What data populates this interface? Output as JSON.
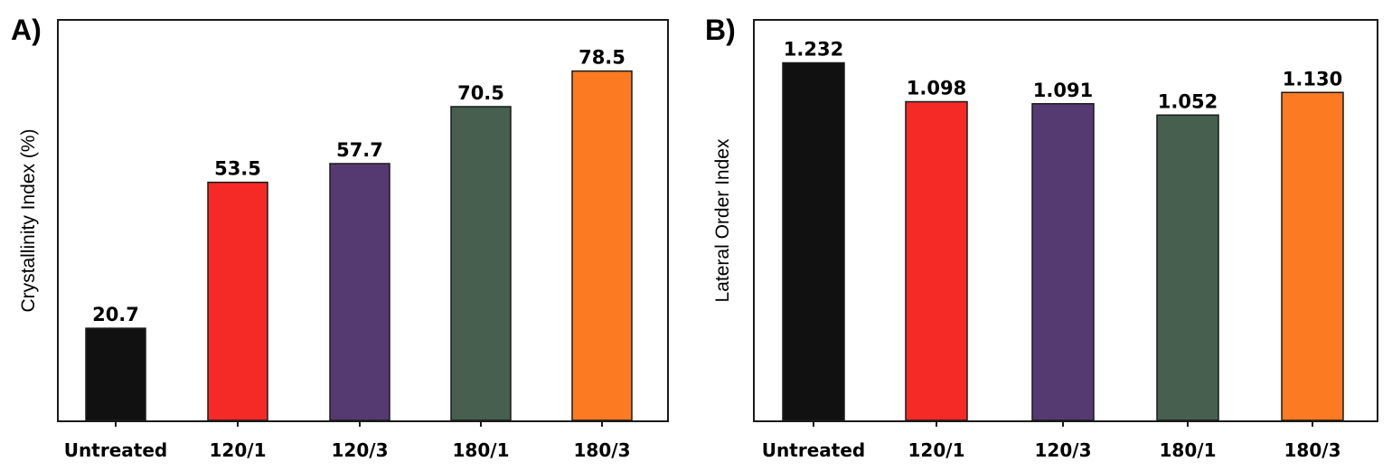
{
  "chart_data": [
    {
      "panel": "A)",
      "type": "bar",
      "title": "",
      "xlabel": "",
      "ylabel": "Crystallinity Index (%)",
      "categories": [
        "Untreated",
        "120/1",
        "120/3",
        "180/1",
        "180/3"
      ],
      "values": [
        20.7,
        53.5,
        57.7,
        70.5,
        78.5
      ],
      "labels": [
        "20.7",
        "53.5",
        "57.7",
        "70.5",
        "78.5"
      ],
      "colors": [
        "#111111",
        "#f52a27",
        "#553a72",
        "#465f4f",
        "#fb7a22"
      ],
      "ylim": [
        0,
        90
      ],
      "grid": false
    },
    {
      "panel": "B)",
      "type": "bar",
      "title": "",
      "xlabel": "",
      "ylabel": "Lateral Order Index",
      "categories": [
        "Untreated",
        "120/1",
        "120/3",
        "180/1",
        "180/3"
      ],
      "values": [
        1.232,
        1.098,
        1.091,
        1.052,
        1.13
      ],
      "labels": [
        "1.232",
        "1.098",
        "1.091",
        "1.052",
        "1.130"
      ],
      "colors": [
        "#111111",
        "#f52a27",
        "#553a72",
        "#465f4f",
        "#fb7a22"
      ],
      "ylim": [
        0,
        1.38
      ],
      "grid": false
    }
  ]
}
